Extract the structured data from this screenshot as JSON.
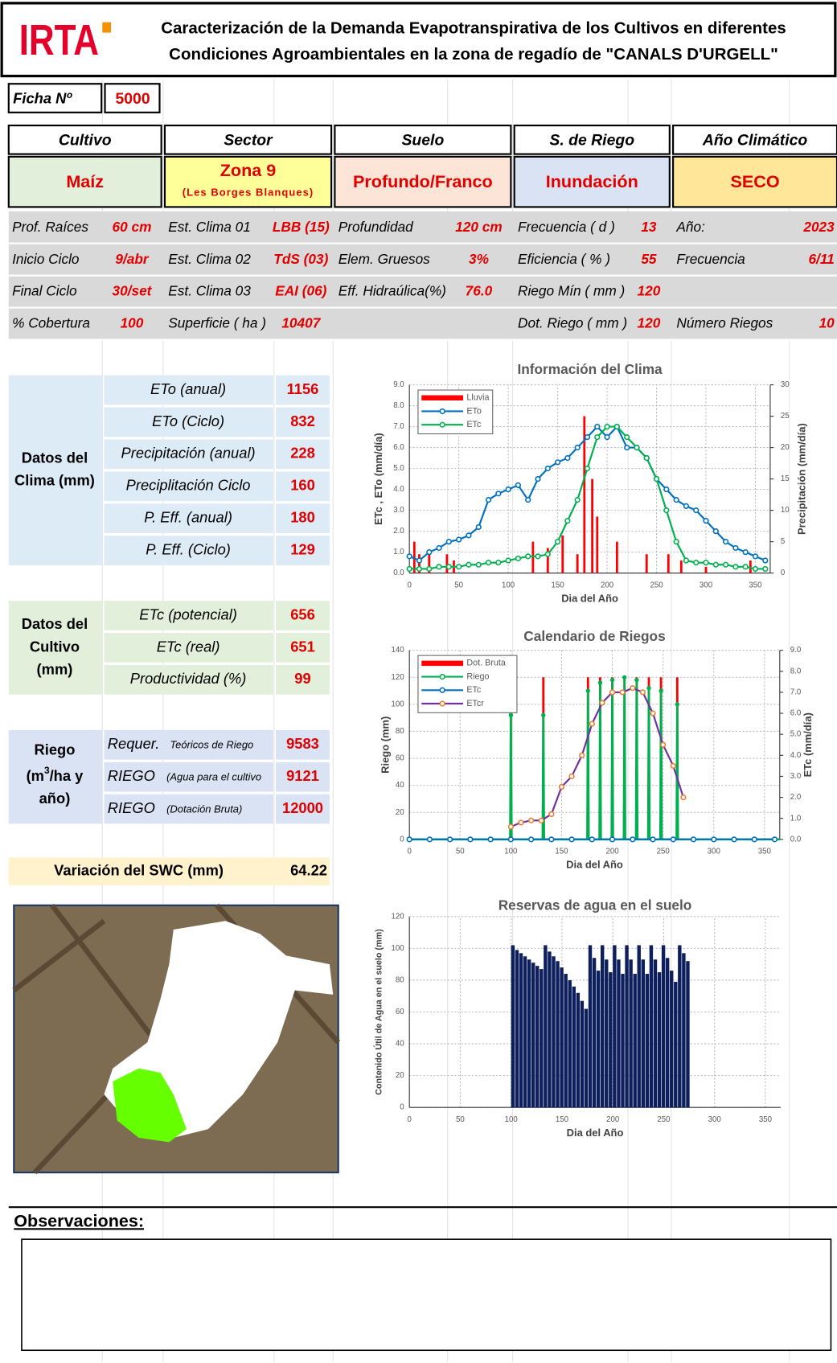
{
  "header": {
    "logo": "IRTA",
    "title_line1": "Caracterización de la Demanda Evapotranspirativa de los Cultivos en diferentes",
    "title_line2": "Condiciones Agroambientales en la zona de regadío de  \"CANALS D'URGELL\""
  },
  "ficha": {
    "label": "Ficha Nº",
    "value": "5000"
  },
  "summary": {
    "headers": [
      "Cultivo",
      "Sector",
      "Suelo",
      "S. de Riego",
      "Año Climático"
    ],
    "values": [
      "Maíz",
      "Zona 9",
      "Profundo/Franco",
      "Inundación",
      "SECO"
    ],
    "sector_note": "(Les Borges Blanques)"
  },
  "params": [
    {
      "cultivo": [
        "Prof. Raíces",
        "60 cm"
      ],
      "sector": [
        "Est. Clima 01",
        "LBB (15)"
      ],
      "suelo": [
        "Profundidad",
        "120 cm"
      ],
      "riego": [
        "Frecuencia ( d )",
        "13"
      ],
      "anio": [
        "Año:",
        "2023"
      ]
    },
    {
      "cultivo": [
        "Inicio Ciclo",
        "9/abr"
      ],
      "sector": [
        "Est. Clima 02",
        "TdS (03)"
      ],
      "suelo": [
        "Elem. Gruesos",
        "3%"
      ],
      "riego": [
        "Eficiencia ( % )",
        "55"
      ],
      "anio": [
        "Frecuencia",
        "6/11"
      ]
    },
    {
      "cultivo": [
        "Final Ciclo",
        "30/set"
      ],
      "sector": [
        "Est. Clima 03",
        "EAI (06)"
      ],
      "suelo": [
        "Eff. Hidraúlica(%)",
        "76.0"
      ],
      "riego": [
        "Riego Mín ( mm )",
        "120"
      ]
    },
    {
      "cultivo": [
        "% Cobertura",
        "100"
      ],
      "sector": [
        "Superficie ( ha )",
        "10407"
      ],
      "riego": [
        "Dot. Riego ( mm )",
        "120"
      ],
      "anio": [
        "Número Riegos",
        "10"
      ]
    }
  ],
  "blocks": [
    {
      "label": [
        "Datos del",
        "Clima (mm)"
      ],
      "rows": [
        {
          "label": "ETo (anual)",
          "value": "1156"
        },
        {
          "label": "ETo (Ciclo)",
          "value": "832"
        },
        {
          "label": "Precipitación (anual)",
          "value": "228"
        },
        {
          "label": "Preciplitación Ciclo",
          "value": "160"
        },
        {
          "label": "P. Eff. (anual)",
          "value": "180"
        },
        {
          "label": "P. Eff. (Ciclo)",
          "value": "129"
        }
      ]
    },
    {
      "label": [
        "Datos del",
        "Cultivo",
        "(mm)"
      ],
      "rows": [
        {
          "label": "ETc (potencial)",
          "value": "656"
        },
        {
          "label": "ETc (real)",
          "value": "651"
        },
        {
          "label": "Productividad (%)",
          "value": "99"
        }
      ]
    },
    {
      "label": [
        "Riego",
        "(m",
        "3",
        "/ha y",
        "año)"
      ],
      "rows": [
        {
          "label": "Requer.",
          "note": "Teóricos de Riego",
          "value": "9583"
        },
        {
          "label": "RIEGO",
          "note": "(Agua para el cultivo",
          "value": "9121"
        },
        {
          "label": "RIEGO",
          "note": "(Dotación Bruta)",
          "value": "12000"
        }
      ]
    }
  ],
  "swc": {
    "label": "Variación del SWC (mm)",
    "value": "64.22"
  },
  "observaciones": {
    "label": "Observaciones:"
  },
  "chart_data": [
    {
      "type": "combo",
      "title": "Información del Clima",
      "xlabel": "Dia del Año",
      "ylabel": "ETc , ETo (mm/día)",
      "y2label": "Precipitación (mm/día)",
      "xlim": [
        0,
        365
      ],
      "xticks": [
        0,
        50,
        100,
        150,
        200,
        250,
        300,
        350
      ],
      "ylim": [
        0,
        9
      ],
      "yticks": [
        {
          "value": 0,
          "label": "0.0"
        },
        {
          "value": 1,
          "label": "1.0"
        },
        {
          "value": 2,
          "label": "2.0"
        },
        {
          "value": 3,
          "label": "3.0"
        },
        {
          "value": 4,
          "label": "4.0"
        },
        {
          "value": 5,
          "label": "5.0"
        },
        {
          "value": 6,
          "label": "6.0"
        },
        {
          "value": 7,
          "label": "7.0"
        },
        {
          "value": 8,
          "label": "8.0"
        },
        {
          "value": 9,
          "label": "9.0"
        }
      ],
      "y2lim": [
        0,
        30
      ],
      "y2ticks": [
        0,
        5,
        10,
        15,
        20,
        25,
        30
      ],
      "grid": true,
      "legend": "upper left",
      "series": [
        {
          "name": "Lluvia",
          "kind": "bar",
          "axis": "y2",
          "color": "#ff0000",
          "x": [
            5,
            10,
            20,
            38,
            45,
            125,
            140,
            155,
            170,
            177,
            185,
            190,
            210,
            240,
            262,
            275,
            300,
            345
          ],
          "values": [
            5,
            3,
            3,
            3,
            2,
            5,
            4,
            6,
            3,
            25,
            15,
            9,
            5,
            3,
            3,
            2,
            1,
            2
          ]
        },
        {
          "name": "ETo",
          "kind": "line",
          "color": "#0070c0",
          "x": [
            0,
            10,
            20,
            30,
            40,
            50,
            60,
            70,
            80,
            90,
            100,
            110,
            120,
            130,
            140,
            150,
            160,
            170,
            180,
            190,
            200,
            210,
            220,
            230,
            240,
            250,
            260,
            270,
            280,
            290,
            300,
            310,
            320,
            330,
            340,
            350,
            360
          ],
          "values": [
            0.8,
            0.6,
            1.0,
            1.2,
            1.5,
            1.6,
            1.8,
            2.2,
            3.5,
            3.8,
            4.0,
            4.2,
            3.5,
            4.5,
            5.0,
            5.3,
            5.5,
            6.0,
            6.5,
            7.0,
            6.5,
            7.0,
            6.0,
            6.0,
            5.5,
            4.5,
            4.0,
            3.5,
            3.2,
            3.0,
            2.5,
            2.0,
            1.5,
            1.2,
            1.0,
            0.8,
            0.6
          ]
        },
        {
          "name": "ETc",
          "kind": "line",
          "color": "#00b050",
          "x": [
            0,
            10,
            20,
            30,
            40,
            50,
            60,
            70,
            80,
            90,
            100,
            110,
            120,
            130,
            140,
            150,
            160,
            170,
            180,
            190,
            200,
            210,
            220,
            230,
            240,
            250,
            260,
            270,
            280,
            290,
            300,
            310,
            320,
            330,
            340,
            350,
            360
          ],
          "values": [
            0.2,
            0.2,
            0.2,
            0.3,
            0.3,
            0.3,
            0.4,
            0.4,
            0.5,
            0.5,
            0.6,
            0.7,
            0.8,
            0.8,
            0.9,
            1.5,
            2.5,
            3.5,
            5.0,
            6.5,
            7.0,
            7.0,
            6.5,
            6.0,
            5.5,
            4.5,
            3.0,
            1.5,
            0.6,
            0.5,
            0.5,
            0.4,
            0.4,
            0.3,
            0.3,
            0.2,
            0.2
          ]
        }
      ]
    },
    {
      "type": "combo",
      "title": "Calendario de Riegos",
      "xlabel": "Dia del Año",
      "ylabel": "Riego (mm)",
      "y2label": "ETc (mm/día)",
      "xlim": [
        0,
        365
      ],
      "xticks": [
        0,
        50,
        100,
        150,
        200,
        250,
        300,
        350
      ],
      "ylim": [
        0,
        140
      ],
      "yticks": [
        0,
        20,
        40,
        60,
        80,
        100,
        120,
        140
      ],
      "y2lim": [
        0,
        9
      ],
      "y2ticks": [
        {
          "value": 0,
          "label": "0.0"
        },
        {
          "value": 1,
          "label": "1.0"
        },
        {
          "value": 2,
          "label": "2.0"
        },
        {
          "value": 3,
          "label": "3.0"
        },
        {
          "value": 4,
          "label": "4.0"
        },
        {
          "value": 5,
          "label": "5.0"
        },
        {
          "value": 6,
          "label": "6.0"
        },
        {
          "value": 7,
          "label": "7.0"
        },
        {
          "value": 8,
          "label": "8.0"
        },
        {
          "value": 9,
          "label": "9.0"
        }
      ],
      "grid": true,
      "legend": "upper left",
      "series": [
        {
          "name": "Dot. Bruta",
          "kind": "bar",
          "color": "#ff0000",
          "x": [
            100,
            132,
            176,
            188,
            200,
            212,
            224,
            236,
            248,
            264
          ],
          "values": [
            120,
            120,
            120,
            120,
            120,
            120,
            120,
            120,
            120,
            120
          ]
        },
        {
          "name": "Riego",
          "kind": "stem",
          "color": "#00b050",
          "x": [
            100,
            132,
            176,
            188,
            200,
            212,
            224,
            236,
            248,
            264
          ],
          "values": [
            92,
            92,
            110,
            116,
            118,
            120,
            118,
            112,
            110,
            100
          ]
        },
        {
          "name": "ETc",
          "kind": "line",
          "axis": "y2",
          "color": "#0070c0",
          "x": [
            0,
            20,
            40,
            60,
            80,
            100,
            120,
            140,
            160,
            180,
            200,
            220,
            240,
            260,
            280,
            300,
            320,
            340,
            360
          ],
          "values": [
            0,
            0,
            0,
            0,
            0,
            0,
            0,
            0,
            0,
            0,
            0,
            0,
            0,
            0,
            0,
            0,
            0,
            0,
            0
          ]
        },
        {
          "name": "ETcr",
          "kind": "line",
          "axis": "y2",
          "color": "#7030a0",
          "marker_color": "#ed7d31",
          "x": [
            100,
            110,
            120,
            130,
            140,
            150,
            160,
            170,
            180,
            190,
            200,
            210,
            220,
            230,
            240,
            250,
            260,
            270
          ],
          "values": [
            0.6,
            0.8,
            0.9,
            0.9,
            1.2,
            2.5,
            3.0,
            4.0,
            5.5,
            6.5,
            7.0,
            7.0,
            7.2,
            7.0,
            6.0,
            4.5,
            3.5,
            2.0
          ]
        }
      ]
    },
    {
      "type": "bar",
      "title": "Reservas de agua en el suelo",
      "xlabel": "Dia del Año",
      "ylabel": "Contenido Útil de Agua en el suelo (mm)",
      "xlim": [
        0,
        365
      ],
      "xticks": [
        0,
        50,
        100,
        150,
        200,
        250,
        300,
        350
      ],
      "ylim": [
        0,
        120
      ],
      "yticks": [
        0,
        20,
        40,
        60,
        80,
        100,
        120
      ],
      "grid": true,
      "color": "#0d1f5c",
      "x": [
        100,
        104,
        108,
        112,
        116,
        120,
        124,
        128,
        132,
        136,
        140,
        144,
        148,
        152,
        156,
        160,
        164,
        168,
        172,
        176,
        180,
        184,
        188,
        192,
        196,
        200,
        204,
        208,
        212,
        216,
        220,
        224,
        228,
        232,
        236,
        240,
        244,
        248,
        252,
        256,
        260,
        264,
        268,
        272
      ],
      "values": [
        102,
        99,
        97,
        95,
        93,
        91,
        89,
        87,
        102,
        98,
        95,
        92,
        88,
        84,
        80,
        76,
        72,
        67,
        62,
        102,
        94,
        86,
        102,
        93,
        85,
        102,
        93,
        84,
        102,
        93,
        84,
        102,
        93,
        84,
        102,
        93,
        85,
        102,
        94,
        86,
        79,
        102,
        97,
        92
      ]
    }
  ]
}
